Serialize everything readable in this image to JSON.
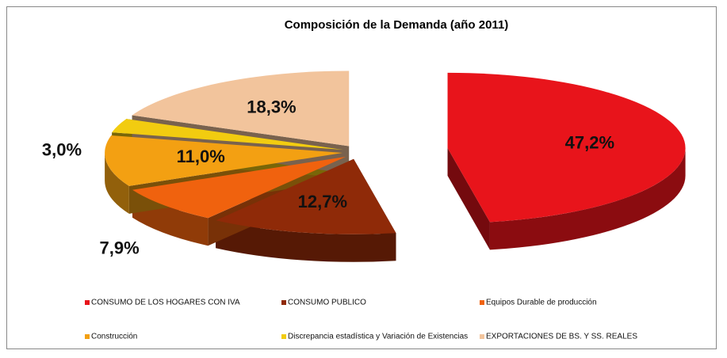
{
  "chart_data": {
    "type": "pie3d",
    "title": "Composición de la Demanda (año 2011)",
    "categories": [
      "CONSUMO DE LOS HOGARES CON IVA",
      "CONSUMO PUBLICO",
      "Equipos Durable de producción",
      "Construcción",
      "Discrepancia estadística y Variación de Existencias",
      "EXPORTACIONES DE BS. Y SS. REALES"
    ],
    "values": [
      47.2,
      12.7,
      7.9,
      11.0,
      3.0,
      18.3
    ],
    "value_labels": [
      "47,2%",
      "12,7%",
      "7,9%",
      "11,0%",
      "3,0%",
      "18,3%"
    ],
    "colors": [
      "#e8141b",
      "#8f2a08",
      "#f0620e",
      "#f3a012",
      "#f2cc10",
      "#f2c49c"
    ],
    "legend": "bottom"
  }
}
